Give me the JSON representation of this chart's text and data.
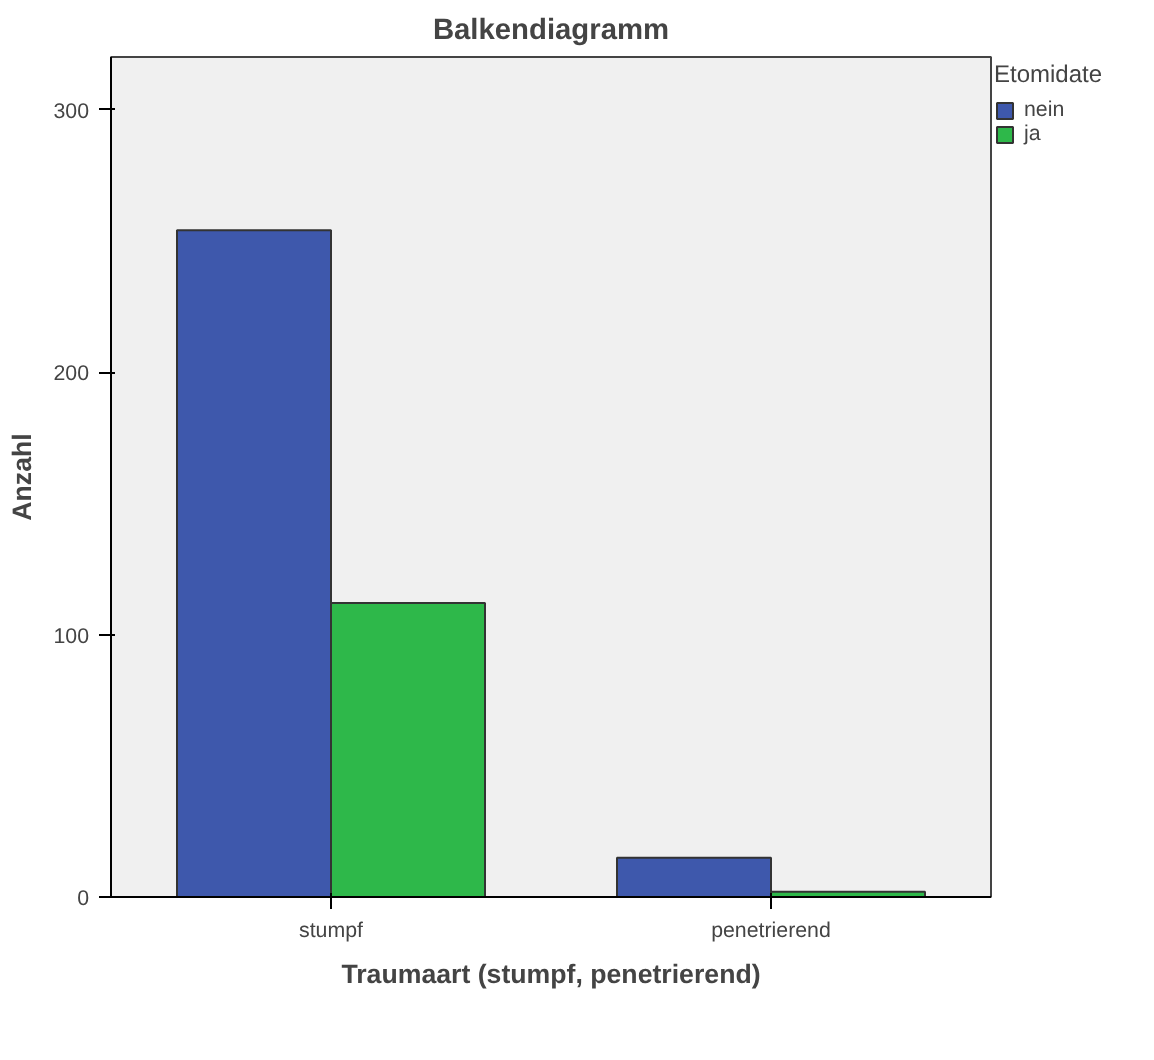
{
  "chart_data": {
    "type": "bar",
    "title": "Balkendiagramm",
    "xlabel": "Traumaart (stumpf, penetrierend)",
    "ylabel": "Anzahl",
    "legend_title": "Etomidate",
    "categories": [
      "stumpf",
      "penetrierend"
    ],
    "series": [
      {
        "name": "nein",
        "color": "#3e58ac",
        "values": [
          254,
          15
        ]
      },
      {
        "name": "ja",
        "color": "#2eb84a",
        "values": [
          112,
          2
        ]
      }
    ],
    "ylim": [
      0,
      320
    ],
    "yticks": [
      0,
      100,
      200,
      300
    ],
    "grid": false,
    "legend": "top right"
  }
}
